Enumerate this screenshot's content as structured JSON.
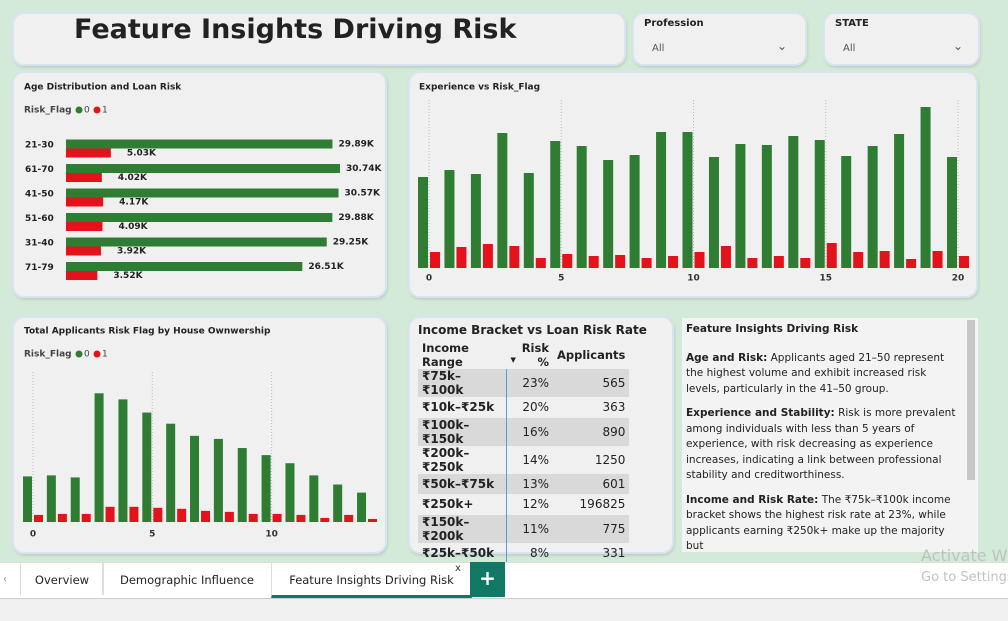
{
  "header": {
    "title": "Feature Insights Driving Risk"
  },
  "filters": [
    {
      "label": "Profession",
      "value": "All"
    },
    {
      "label": "STATE",
      "value": "All"
    }
  ],
  "chart_data": [
    {
      "type": "hbar",
      "title": "Age Distribution and Loan Risk",
      "legend_title": "Risk_Flag",
      "categories": [
        "21-30",
        "61-70",
        "41-50",
        "51-60",
        "31-40",
        "71-79"
      ],
      "series": [
        {
          "name": "0",
          "color": "#2e7d32",
          "values": [
            29890,
            30740,
            30570,
            29880,
            29250,
            26510
          ],
          "value_labels": [
            "29.89K",
            "30.74K",
            "30.57K",
            "29.88K",
            "29.25K",
            "26.51K"
          ]
        },
        {
          "name": "1",
          "color": "#e3121b",
          "values": [
            5030,
            4020,
            4170,
            4090,
            3920,
            3520
          ],
          "value_labels": [
            "5.03K",
            "4.02K",
            "4.17K",
            "4.09K",
            "3.92K",
            "3.52K"
          ]
        }
      ],
      "xlim": [
        0,
        35000
      ]
    },
    {
      "type": "bar",
      "title": "Experience vs Risk_Flag",
      "x": [
        0,
        1,
        2,
        3,
        4,
        5,
        6,
        7,
        8,
        9,
        10,
        11,
        12,
        13,
        14,
        15,
        16,
        17,
        18,
        19,
        20
      ],
      "series": [
        {
          "color": "#2e7d32",
          "values": [
            9100,
            9800,
            9400,
            13500,
            9500,
            12700,
            12200,
            10800,
            11300,
            13600,
            13600,
            11100,
            12400,
            12300,
            13200,
            12800,
            11200,
            12200,
            13400,
            16100,
            11100
          ]
        },
        {
          "color": "#e3121b",
          "values": [
            1600,
            2100,
            2400,
            2200,
            1000,
            1400,
            1200,
            1300,
            1000,
            1200,
            1600,
            2200,
            1000,
            1200,
            1000,
            2500,
            1600,
            1700,
            900,
            1700,
            1200
          ]
        }
      ],
      "ylim": [
        0,
        16800
      ],
      "xticks": [
        0,
        5,
        10,
        15,
        20
      ],
      "grid": true
    },
    {
      "type": "bar",
      "title": "Total Applicants Risk Flag by House Ownwership",
      "legend_title": "Risk_Flag",
      "x": [
        0,
        1,
        2,
        3,
        4,
        5,
        6,
        7,
        8,
        9,
        10,
        11,
        12,
        13,
        14
      ],
      "series": [
        {
          "name": "0",
          "color": "#2e7d32",
          "values": [
            4500,
            4600,
            4400,
            12700,
            12100,
            10800,
            9700,
            8500,
            8200,
            7300,
            6600,
            5800,
            4600,
            3700,
            2900
          ]
        },
        {
          "name": "1",
          "color": "#e3121b",
          "values": [
            700,
            800,
            800,
            1500,
            1500,
            1400,
            1300,
            1100,
            1000,
            800,
            800,
            700,
            400,
            700,
            300
          ]
        }
      ],
      "ylim": [
        0,
        15000
      ],
      "xticks": [
        0,
        5,
        10
      ],
      "grid": true
    }
  ],
  "table": {
    "title": "Income Bracket vs Loan Risk Rate",
    "columns": [
      "Income Range",
      "Risk %",
      "Applicants"
    ],
    "rows": [
      [
        "₹75k–₹100k",
        "23%",
        "565"
      ],
      [
        "₹10k–₹25k",
        "20%",
        "363"
      ],
      [
        "₹100k–₹150k",
        "16%",
        "890"
      ],
      [
        "₹200k–₹250k",
        "14%",
        "1250"
      ],
      [
        "₹50k–₹75k",
        "13%",
        "601"
      ],
      [
        "₹250k+",
        "12%",
        "196825"
      ],
      [
        "₹150k–₹200k",
        "11%",
        "775"
      ],
      [
        "₹25k–₹50k",
        "8%",
        "331"
      ]
    ]
  },
  "text_panel": {
    "title": "Feature Insights Driving Risk",
    "paragraphs": [
      {
        "lead": "Age and Risk:",
        "body": " Applicants aged 21–50 represent the highest volume and exhibit increased risk levels, particularly in the 41–50 group."
      },
      {
        "lead": "Experience and Stability:",
        "body": " Risk is more prevalent among individuals with less than 5 years of experience, with risk decreasing as experience increases, indicating a link between professional stability and creditworthiness."
      },
      {
        "lead": "Income and Risk Rate:",
        "body": " The ₹75k–₹100k income bracket shows the highest risk rate at 23%, while applicants earning ₹250k+ make up the majority but"
      }
    ]
  },
  "tabs": [
    "Overview",
    "Demographic Influence",
    "Feature Insights Driving Risk"
  ],
  "watermark": [
    "Activate Windows",
    "Go to Settings"
  ]
}
